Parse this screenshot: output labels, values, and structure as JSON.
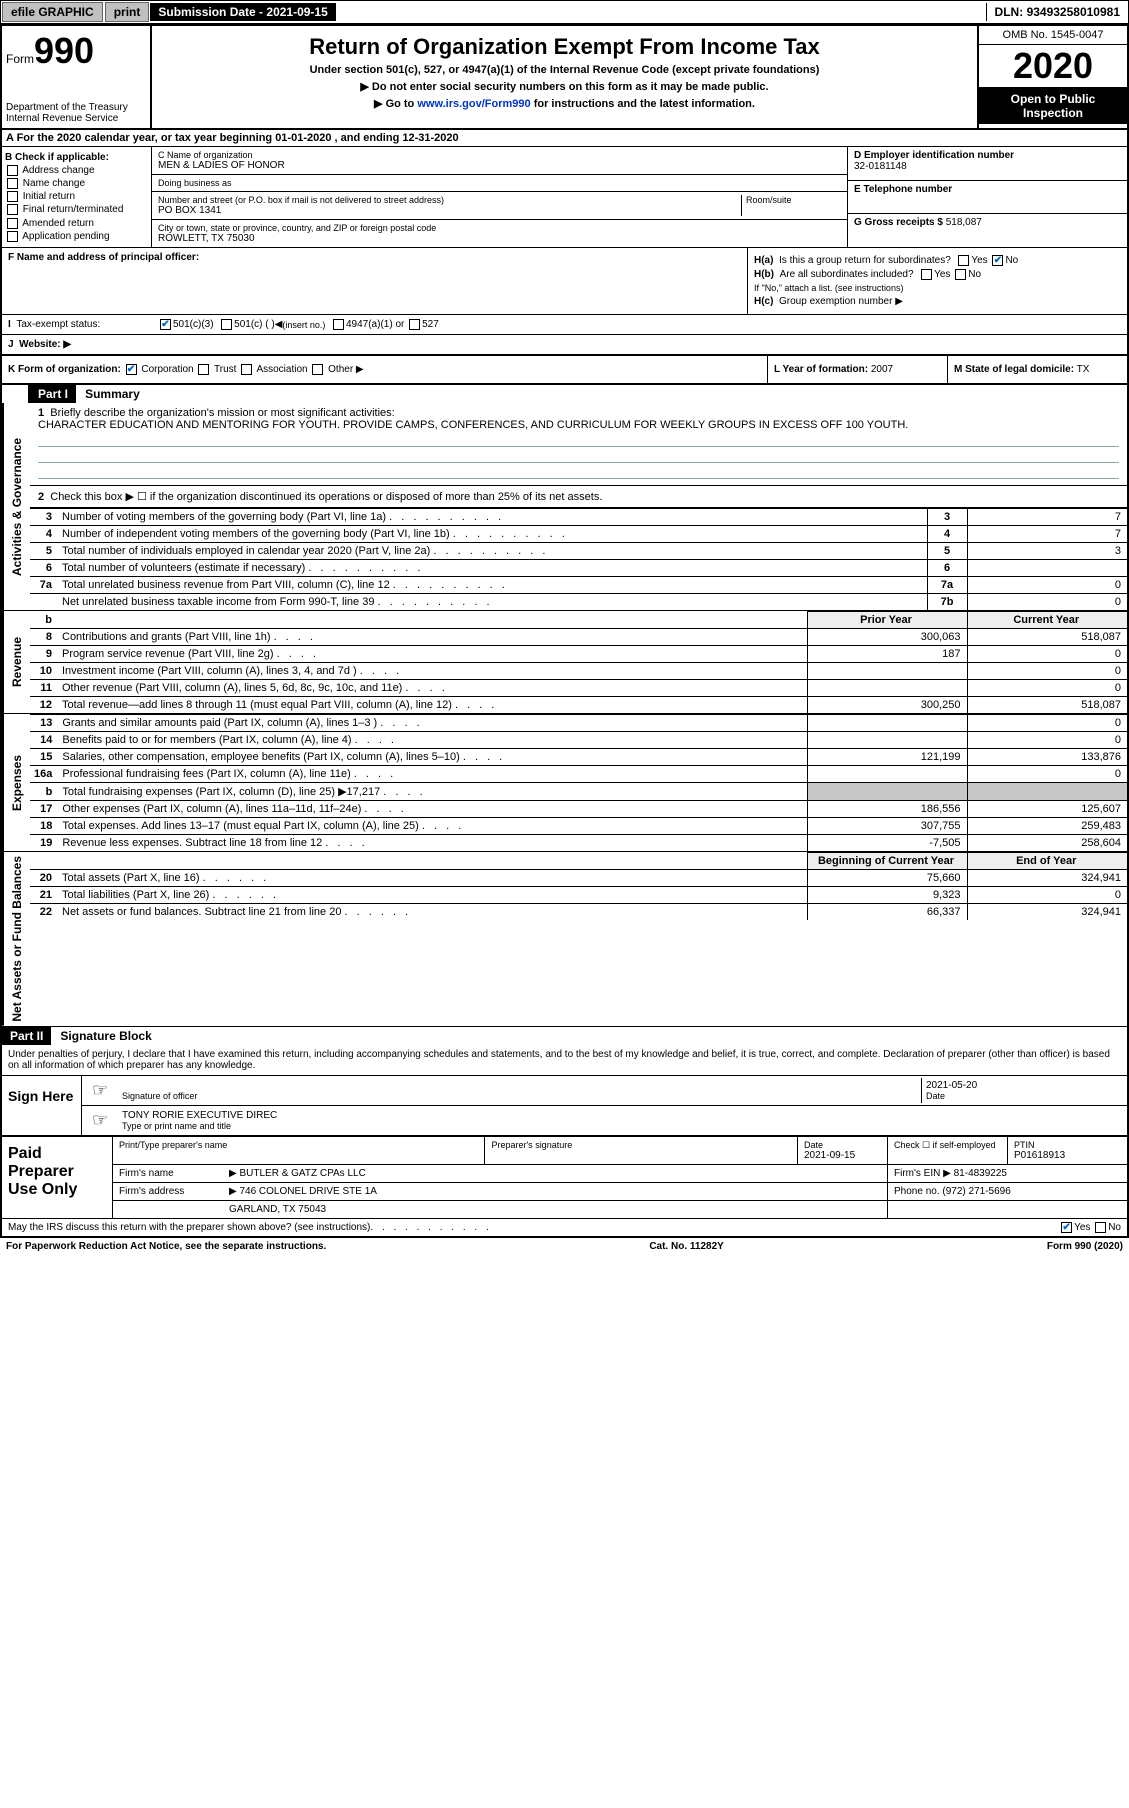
{
  "topbar": {
    "efile": "efile GRAPHIC",
    "print": "print",
    "submission_label": "Submission Date -",
    "submission_date": "2021-09-15",
    "dln_label": "DLN:",
    "dln": "93493258010981"
  },
  "header": {
    "form_prefix": "Form",
    "form_number": "990",
    "title": "Return of Organization Exempt From Income Tax",
    "subtitle": "Under section 501(c), 527, or 4947(a)(1) of the Internal Revenue Code (except private foundations)",
    "line1": "Do not enter social security numbers on this form as it may be made public.",
    "line2_pre": "Go to",
    "line2_link": "www.irs.gov/Form990",
    "line2_post": "for instructions and the latest information.",
    "dept": "Department of the Treasury\nInternal Revenue Service",
    "omb": "OMB No. 1545-0047",
    "year": "2020",
    "inspection": "Open to Public Inspection"
  },
  "row_a": "A For the 2020 calendar year, or tax year beginning 01-01-2020    , and ending 12-31-2020",
  "col_b": {
    "title": "B Check if applicable:",
    "items": [
      "Address change",
      "Name change",
      "Initial return",
      "Final return/terminated",
      "Amended return",
      "Application pending"
    ]
  },
  "col_c": {
    "name_lbl": "C Name of organization",
    "name": "MEN & LADIES OF HONOR",
    "dba_lbl": "Doing business as",
    "dba": "",
    "addr_lbl": "Number and street (or P.O. box if mail is not delivered to street address)",
    "room_lbl": "Room/suite",
    "addr": "PO BOX 1341",
    "city_lbl": "City or town, state or province, country, and ZIP or foreign postal code",
    "city": "ROWLETT, TX  75030"
  },
  "col_d": {
    "ein_lbl": "D Employer identification number",
    "ein": "32-0181148"
  },
  "col_e": {
    "phone_lbl": "E Telephone number",
    "phone": "",
    "gross_lbl": "G Gross receipts $",
    "gross": "518,087"
  },
  "col_f": {
    "lbl": "F Name and address of principal officer:",
    "val": ""
  },
  "col_h": {
    "a_lbl": "H(a)",
    "a_txt": "Is this a group return for subordinates?",
    "a_yes": "Yes",
    "a_no": "No",
    "b_lbl": "H(b)",
    "b_txt": "Are all subordinates included?",
    "b_note": "If \"No,\" attach a list. (see instructions)",
    "c_lbl": "H(c)",
    "c_txt": "Group exemption number"
  },
  "tax_exempt": {
    "i_lbl": "I",
    "lbl": "Tax-exempt status:",
    "opt1": "501(c)(3)",
    "opt2": "501(c) (  )",
    "opt2_note": "(insert no.)",
    "opt3": "4947(a)(1) or",
    "opt4": "527"
  },
  "website": {
    "j_lbl": "J",
    "lbl": "Website:",
    "val": ""
  },
  "klm": {
    "k_lbl": "K Form of organization:",
    "k_opts": [
      "Corporation",
      "Trust",
      "Association",
      "Other"
    ],
    "l_lbl": "L Year of formation:",
    "l_val": "2007",
    "m_lbl": "M State of legal domicile:",
    "m_val": "TX"
  },
  "part1": {
    "hdr": "Part I",
    "title": "Summary",
    "mission_lbl": "1",
    "mission_txt": "Briefly describe the organization's mission or most significant activities:",
    "mission": "CHARACTER EDUCATION AND MENTORING FOR YOUTH. PROVIDE CAMPS, CONFERENCES, AND CURRICULUM FOR WEEKLY GROUPS IN EXCESS OFF 100 YOUTH.",
    "line2": "Check this box ▶ ☐ if the organization discontinued its operations or disposed of more than 25% of its net assets.",
    "rows_activities": [
      {
        "n": "3",
        "t": "Number of voting members of the governing body (Part VI, line 1a)",
        "box": "3",
        "v": "7"
      },
      {
        "n": "4",
        "t": "Number of independent voting members of the governing body (Part VI, line 1b)",
        "box": "4",
        "v": "7"
      },
      {
        "n": "5",
        "t": "Total number of individuals employed in calendar year 2020 (Part V, line 2a)",
        "box": "5",
        "v": "3"
      },
      {
        "n": "6",
        "t": "Total number of volunteers (estimate if necessary)",
        "box": "6",
        "v": ""
      },
      {
        "n": "7a",
        "t": "Total unrelated business revenue from Part VIII, column (C), line 12",
        "box": "7a",
        "v": "0"
      },
      {
        "n": "",
        "t": "Net unrelated business taxable income from Form 990-T, line 39",
        "box": "7b",
        "v": "0"
      }
    ],
    "prior_hdr": "Prior Year",
    "current_hdr": "Current Year",
    "rows_revenue": [
      {
        "n": "8",
        "t": "Contributions and grants (Part VIII, line 1h)",
        "p": "300,063",
        "c": "518,087"
      },
      {
        "n": "9",
        "t": "Program service revenue (Part VIII, line 2g)",
        "p": "187",
        "c": "0"
      },
      {
        "n": "10",
        "t": "Investment income (Part VIII, column (A), lines 3, 4, and 7d )",
        "p": "",
        "c": "0"
      },
      {
        "n": "11",
        "t": "Other revenue (Part VIII, column (A), lines 5, 6d, 8c, 9c, 10c, and 11e)",
        "p": "",
        "c": "0"
      },
      {
        "n": "12",
        "t": "Total revenue—add lines 8 through 11 (must equal Part VIII, column (A), line 12)",
        "p": "300,250",
        "c": "518,087"
      }
    ],
    "rows_expenses": [
      {
        "n": "13",
        "t": "Grants and similar amounts paid (Part IX, column (A), lines 1–3 )",
        "p": "",
        "c": "0"
      },
      {
        "n": "14",
        "t": "Benefits paid to or for members (Part IX, column (A), line 4)",
        "p": "",
        "c": "0"
      },
      {
        "n": "15",
        "t": "Salaries, other compensation, employee benefits (Part IX, column (A), lines 5–10)",
        "p": "121,199",
        "c": "133,876"
      },
      {
        "n": "16a",
        "t": "Professional fundraising fees (Part IX, column (A), line 11e)",
        "p": "",
        "c": "0"
      },
      {
        "n": "b",
        "t": "Total fundraising expenses (Part IX, column (D), line 25) ▶17,217",
        "p": "shade",
        "c": "shade"
      },
      {
        "n": "17",
        "t": "Other expenses (Part IX, column (A), lines 11a–11d, 11f–24e)",
        "p": "186,556",
        "c": "125,607"
      },
      {
        "n": "18",
        "t": "Total expenses. Add lines 13–17 (must equal Part IX, column (A), line 25)",
        "p": "307,755",
        "c": "259,483"
      },
      {
        "n": "19",
        "t": "Revenue less expenses. Subtract line 18 from line 12",
        "p": "-7,505",
        "c": "258,604"
      }
    ],
    "net_hdr_begin": "Beginning of Current Year",
    "net_hdr_end": "End of Year",
    "rows_net": [
      {
        "n": "20",
        "t": "Total assets (Part X, line 16)",
        "p": "75,660",
        "c": "324,941"
      },
      {
        "n": "21",
        "t": "Total liabilities (Part X, line 26)",
        "p": "9,323",
        "c": "0"
      },
      {
        "n": "22",
        "t": "Net assets or fund balances. Subtract line 21 from line 20",
        "p": "66,337",
        "c": "324,941"
      }
    ],
    "side_act": "Activities & Governance",
    "side_rev": "Revenue",
    "side_exp": "Expenses",
    "side_net": "Net Assets or Fund Balances"
  },
  "part2": {
    "hdr": "Part II",
    "title": "Signature Block",
    "declaration": "Under penalties of perjury, I declare that I have examined this return, including accompanying schedules and statements, and to the best of my knowledge and belief, it is true, correct, and complete. Declaration of preparer (other than officer) is based on all information of which preparer has any knowledge.",
    "sign_here": "Sign Here",
    "sig_officer": "Signature of officer",
    "sig_date_lbl": "Date",
    "sig_date": "2021-05-20",
    "officer_name": "TONY RORIE  EXECUTIVE DIREC",
    "officer_name_lbl": "Type or print name and title",
    "paid": "Paid Preparer Use Only",
    "prep_name_lbl": "Print/Type preparer's name",
    "prep_sig_lbl": "Preparer's signature",
    "prep_date_lbl": "Date",
    "prep_date": "2021-09-15",
    "self_emp": "Check ☐ if self-employed",
    "ptin_lbl": "PTIN",
    "ptin": "P01618913",
    "firm_name_lbl": "Firm's name",
    "firm_name": "BUTLER & GATZ CPAs LLC",
    "firm_ein_lbl": "Firm's EIN",
    "firm_ein": "81-4839225",
    "firm_addr_lbl": "Firm's address",
    "firm_addr1": "746 COLONEL DRIVE STE 1A",
    "firm_addr2": "GARLAND, TX  75043",
    "firm_phone_lbl": "Phone no.",
    "firm_phone": "(972) 271-5696",
    "discuss": "May the IRS discuss this return with the preparer shown above? (see instructions)",
    "yes": "Yes",
    "no": "No"
  },
  "footer": {
    "left": "For Paperwork Reduction Act Notice, see the separate instructions.",
    "mid": "Cat. No. 11282Y",
    "right": "Form 990 (2020)"
  }
}
